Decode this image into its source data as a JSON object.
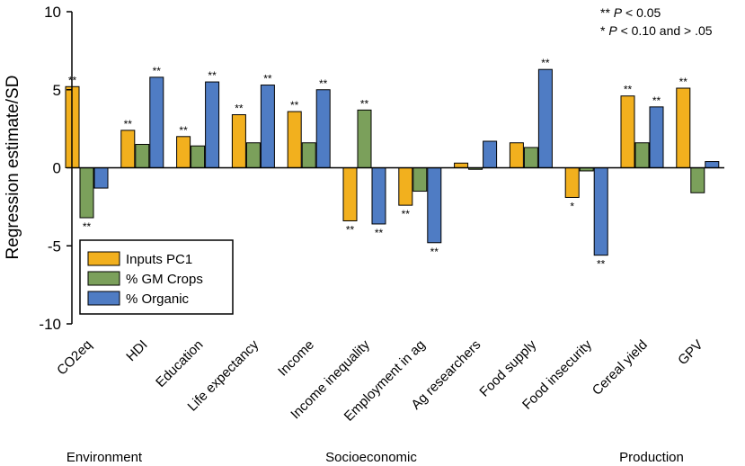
{
  "chart_data": {
    "type": "bar",
    "ylabel": "Regression estimate/SD",
    "ylim": [
      -10,
      10
    ],
    "yticks": [
      "-10",
      "-5",
      "0",
      "5",
      "10"
    ],
    "categories": [
      "CO2eq",
      "HDI",
      "Education",
      "Life expectancy",
      "Income",
      "Income inequality",
      "Employment in ag",
      "Ag researchers",
      "Food supply",
      "Food insecurity",
      "Cereal yield",
      "GPV"
    ],
    "series": [
      {
        "name": "Inputs PC1",
        "color": "#F2B01E",
        "values": [
          5.2,
          2.4,
          2.0,
          3.4,
          3.6,
          -3.4,
          -2.4,
          0.3,
          1.6,
          -1.9,
          4.6,
          5.1
        ],
        "stars": [
          "**",
          "**",
          "**",
          "**",
          "**",
          "**",
          "**",
          "",
          "",
          "*",
          "**",
          "**"
        ]
      },
      {
        "name": "% GM Crops",
        "color": "#7BA05B",
        "values": [
          -3.2,
          1.5,
          1.4,
          1.6,
          1.6,
          3.7,
          -1.5,
          -0.1,
          1.3,
          -0.2,
          1.6,
          -1.6
        ],
        "stars": [
          "**",
          "",
          "",
          "",
          "",
          "**",
          "",
          "",
          "",
          "",
          "",
          ""
        ]
      },
      {
        "name": "% Organic",
        "color": "#4F7CC4",
        "values": [
          -1.3,
          5.8,
          5.5,
          5.3,
          5.0,
          -3.6,
          -4.8,
          1.7,
          6.3,
          -5.6,
          3.9,
          0.4
        ],
        "stars": [
          "",
          "**",
          "**",
          "**",
          "**",
          "**",
          "**",
          "",
          "**",
          "**",
          "**",
          ""
        ]
      }
    ],
    "groups": [
      "Environment",
      "Socioeconomic",
      "Production"
    ],
    "annotations": {
      "line1_stars": "** ",
      "line1_p": "P",
      "line1_rest": " < 0.05",
      "line2_stars": "* ",
      "line2_p": "P",
      "line2_rest": " < 0.10 and > .05"
    },
    "legend_position": "bottom-left"
  }
}
